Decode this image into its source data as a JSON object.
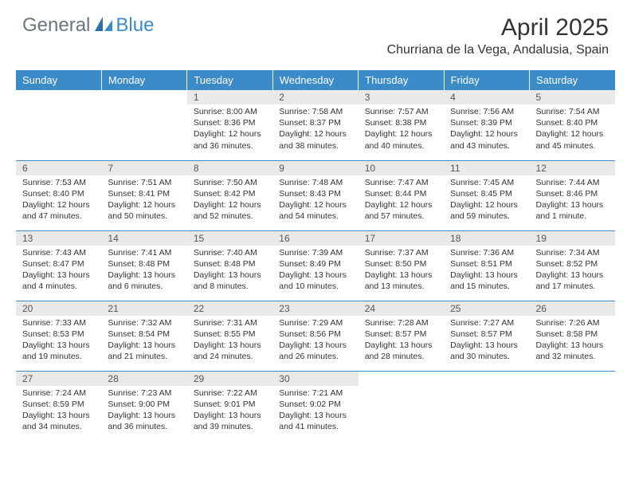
{
  "brand": {
    "part1": "General",
    "part2": "Blue"
  },
  "title": "April 2025",
  "location": "Churriana de la Vega, Andalusia, Spain",
  "header_bg": "#3b8bc9",
  "weekdays": [
    "Sunday",
    "Monday",
    "Tuesday",
    "Wednesday",
    "Thursday",
    "Friday",
    "Saturday"
  ],
  "weeks": [
    [
      null,
      null,
      {
        "n": "1",
        "sr": "8:00 AM",
        "ss": "8:36 PM",
        "dl": "12 hours and 36 minutes."
      },
      {
        "n": "2",
        "sr": "7:58 AM",
        "ss": "8:37 PM",
        "dl": "12 hours and 38 minutes."
      },
      {
        "n": "3",
        "sr": "7:57 AM",
        "ss": "8:38 PM",
        "dl": "12 hours and 40 minutes."
      },
      {
        "n": "4",
        "sr": "7:56 AM",
        "ss": "8:39 PM",
        "dl": "12 hours and 43 minutes."
      },
      {
        "n": "5",
        "sr": "7:54 AM",
        "ss": "8:40 PM",
        "dl": "12 hours and 45 minutes."
      }
    ],
    [
      {
        "n": "6",
        "sr": "7:53 AM",
        "ss": "8:40 PM",
        "dl": "12 hours and 47 minutes."
      },
      {
        "n": "7",
        "sr": "7:51 AM",
        "ss": "8:41 PM",
        "dl": "12 hours and 50 minutes."
      },
      {
        "n": "8",
        "sr": "7:50 AM",
        "ss": "8:42 PM",
        "dl": "12 hours and 52 minutes."
      },
      {
        "n": "9",
        "sr": "7:48 AM",
        "ss": "8:43 PM",
        "dl": "12 hours and 54 minutes."
      },
      {
        "n": "10",
        "sr": "7:47 AM",
        "ss": "8:44 PM",
        "dl": "12 hours and 57 minutes."
      },
      {
        "n": "11",
        "sr": "7:45 AM",
        "ss": "8:45 PM",
        "dl": "12 hours and 59 minutes."
      },
      {
        "n": "12",
        "sr": "7:44 AM",
        "ss": "8:46 PM",
        "dl": "13 hours and 1 minute."
      }
    ],
    [
      {
        "n": "13",
        "sr": "7:43 AM",
        "ss": "8:47 PM",
        "dl": "13 hours and 4 minutes."
      },
      {
        "n": "14",
        "sr": "7:41 AM",
        "ss": "8:48 PM",
        "dl": "13 hours and 6 minutes."
      },
      {
        "n": "15",
        "sr": "7:40 AM",
        "ss": "8:48 PM",
        "dl": "13 hours and 8 minutes."
      },
      {
        "n": "16",
        "sr": "7:39 AM",
        "ss": "8:49 PM",
        "dl": "13 hours and 10 minutes."
      },
      {
        "n": "17",
        "sr": "7:37 AM",
        "ss": "8:50 PM",
        "dl": "13 hours and 13 minutes."
      },
      {
        "n": "18",
        "sr": "7:36 AM",
        "ss": "8:51 PM",
        "dl": "13 hours and 15 minutes."
      },
      {
        "n": "19",
        "sr": "7:34 AM",
        "ss": "8:52 PM",
        "dl": "13 hours and 17 minutes."
      }
    ],
    [
      {
        "n": "20",
        "sr": "7:33 AM",
        "ss": "8:53 PM",
        "dl": "13 hours and 19 minutes."
      },
      {
        "n": "21",
        "sr": "7:32 AM",
        "ss": "8:54 PM",
        "dl": "13 hours and 21 minutes."
      },
      {
        "n": "22",
        "sr": "7:31 AM",
        "ss": "8:55 PM",
        "dl": "13 hours and 24 minutes."
      },
      {
        "n": "23",
        "sr": "7:29 AM",
        "ss": "8:56 PM",
        "dl": "13 hours and 26 minutes."
      },
      {
        "n": "24",
        "sr": "7:28 AM",
        "ss": "8:57 PM",
        "dl": "13 hours and 28 minutes."
      },
      {
        "n": "25",
        "sr": "7:27 AM",
        "ss": "8:57 PM",
        "dl": "13 hours and 30 minutes."
      },
      {
        "n": "26",
        "sr": "7:26 AM",
        "ss": "8:58 PM",
        "dl": "13 hours and 32 minutes."
      }
    ],
    [
      {
        "n": "27",
        "sr": "7:24 AM",
        "ss": "8:59 PM",
        "dl": "13 hours and 34 minutes."
      },
      {
        "n": "28",
        "sr": "7:23 AM",
        "ss": "9:00 PM",
        "dl": "13 hours and 36 minutes."
      },
      {
        "n": "29",
        "sr": "7:22 AM",
        "ss": "9:01 PM",
        "dl": "13 hours and 39 minutes."
      },
      {
        "n": "30",
        "sr": "7:21 AM",
        "ss": "9:02 PM",
        "dl": "13 hours and 41 minutes."
      },
      null,
      null,
      null
    ]
  ],
  "labels": {
    "sunrise": "Sunrise:",
    "sunset": "Sunset:",
    "daylight": "Daylight:"
  }
}
